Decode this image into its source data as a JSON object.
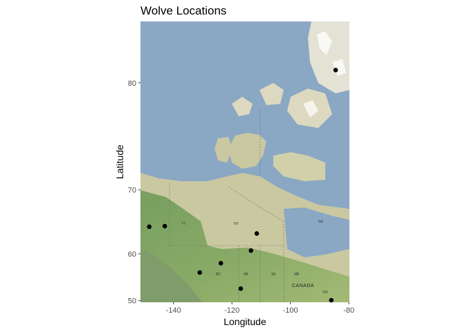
{
  "chart_data": {
    "type": "scatter",
    "title": "Wolve Locations",
    "xlabel": "Longitude",
    "ylabel": "Latitude",
    "xlim": [
      -151.3,
      -79.8
    ],
    "ylim": [
      49.6,
      83.3
    ],
    "x_ticks": [
      -140,
      -120,
      -100,
      -80
    ],
    "y_ticks": [
      50,
      60,
      70,
      80
    ],
    "x_tick_labels": [
      "-140",
      "-120",
      "-100",
      "-80"
    ],
    "y_tick_labels": [
      "50",
      "60",
      "70",
      "80"
    ],
    "projection": "mercator",
    "basemap": "satellite",
    "grid": false,
    "point_color": "#000000",
    "points": [
      {
        "x": -148.3,
        "y": 64.7
      },
      {
        "x": -143.0,
        "y": 64.8
      },
      {
        "x": -111.5,
        "y": 63.6
      },
      {
        "x": -113.5,
        "y": 60.6
      },
      {
        "x": -123.8,
        "y": 58.2
      },
      {
        "x": -131.0,
        "y": 56.3
      },
      {
        "x": -117.0,
        "y": 52.8
      },
      {
        "x": -86.0,
        "y": 50.1
      },
      {
        "x": -84.5,
        "y": 80.8
      }
    ],
    "map_labels": [
      "NT",
      "NU",
      "YT",
      "BC",
      "AB",
      "SK",
      "MB",
      "CANADA",
      "ON"
    ]
  }
}
